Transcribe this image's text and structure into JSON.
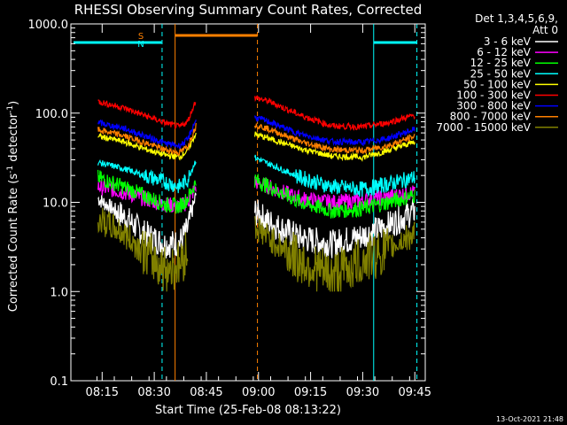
{
  "chart_data": {
    "type": "line",
    "title": "RHESSI Observing Summary Count Rates, Corrected",
    "xlabel": "Start Time (25-Feb-08 08:13:22)",
    "ylabel_main": "Corrected Count Rate (s",
    "ylabel_sup1": "-1",
    "ylabel_mid": " detector",
    "ylabel_sup2": "-1",
    "ylabel_end": ")",
    "y_scale": "log",
    "ylim": [
      0.1,
      1000
    ],
    "xlim_minutes": [
      8.1,
      9.8
    ],
    "x_ticks": [
      "08:15",
      "08:30",
      "08:45",
      "09:00",
      "09:15",
      "09:30",
      "09:45"
    ],
    "y_ticks": [
      "1000.0",
      "100.0",
      "10.0",
      "1.0",
      "0.1"
    ],
    "legend_header": [
      "Det 1,3,4,5,6,9,",
      "Att 0"
    ],
    "footer_date": "13-Oct-2021 21:48",
    "flags": {
      "saa_s": "S",
      "saa_n": "N"
    },
    "series": [
      {
        "name": "3 - 6 keV",
        "color": "#ffffff",
        "values": [
          [
            8.23,
            11
          ],
          [
            8.35,
            7
          ],
          [
            8.45,
            4.5
          ],
          [
            8.55,
            3.4
          ],
          [
            8.62,
            3.5
          ],
          [
            8.66,
            5
          ],
          [
            8.7,
            12
          ],
          [
            8.98,
            8
          ],
          [
            9.05,
            6
          ],
          [
            9.2,
            4
          ],
          [
            9.35,
            3.4
          ],
          [
            9.5,
            4.2
          ],
          [
            9.62,
            5.5
          ],
          [
            9.75,
            8
          ]
        ]
      },
      {
        "name": "6 - 12 keV",
        "color": "#ff00ff",
        "values": [
          [
            8.23,
            15
          ],
          [
            8.35,
            13
          ],
          [
            8.45,
            11
          ],
          [
            8.55,
            9.5
          ],
          [
            8.62,
            9
          ],
          [
            8.66,
            10
          ],
          [
            8.7,
            15
          ],
          [
            8.98,
            17
          ],
          [
            9.05,
            15
          ],
          [
            9.2,
            11
          ],
          [
            9.35,
            10
          ],
          [
            9.5,
            10.5
          ],
          [
            9.62,
            11.5
          ],
          [
            9.75,
            13
          ]
        ]
      },
      {
        "name": "12 - 25 keV",
        "color": "#00ff00",
        "values": [
          [
            8.23,
            19
          ],
          [
            8.35,
            15
          ],
          [
            8.45,
            12
          ],
          [
            8.55,
            9.5
          ],
          [
            8.62,
            9
          ],
          [
            8.66,
            11
          ],
          [
            8.7,
            17
          ],
          [
            8.98,
            18
          ],
          [
            9.05,
            15
          ],
          [
            9.2,
            10
          ],
          [
            9.35,
            8
          ],
          [
            9.5,
            8.5
          ],
          [
            9.62,
            10
          ],
          [
            9.75,
            12
          ]
        ]
      },
      {
        "name": "25 - 50 keV",
        "color": "#00ffff",
        "values": [
          [
            8.23,
            28
          ],
          [
            8.35,
            24
          ],
          [
            8.45,
            20
          ],
          [
            8.55,
            17
          ],
          [
            8.62,
            15
          ],
          [
            8.66,
            18
          ],
          [
            8.7,
            30
          ],
          [
            8.98,
            32
          ],
          [
            9.05,
            27
          ],
          [
            9.2,
            19
          ],
          [
            9.35,
            15
          ],
          [
            9.5,
            14
          ],
          [
            9.62,
            16
          ],
          [
            9.75,
            19
          ]
        ]
      },
      {
        "name": "50 - 100 keV",
        "color": "#ffff00",
        "values": [
          [
            8.23,
            55
          ],
          [
            8.35,
            48
          ],
          [
            8.45,
            40
          ],
          [
            8.55,
            34
          ],
          [
            8.62,
            32
          ],
          [
            8.66,
            38
          ],
          [
            8.7,
            60
          ],
          [
            8.98,
            58
          ],
          [
            9.05,
            52
          ],
          [
            9.2,
            40
          ],
          [
            9.35,
            33
          ],
          [
            9.5,
            32
          ],
          [
            9.62,
            38
          ],
          [
            9.75,
            48
          ]
        ]
      },
      {
        "name": "100 - 300 keV",
        "color": "#ff0000",
        "values": [
          [
            8.23,
            135
          ],
          [
            8.35,
            115
          ],
          [
            8.45,
            95
          ],
          [
            8.55,
            78
          ],
          [
            8.62,
            70
          ],
          [
            8.66,
            80
          ],
          [
            8.7,
            140
          ],
          [
            8.98,
            150
          ],
          [
            9.05,
            135
          ],
          [
            9.2,
            95
          ],
          [
            9.35,
            72
          ],
          [
            9.5,
            70
          ],
          [
            9.62,
            78
          ],
          [
            9.75,
            95
          ]
        ]
      },
      {
        "name": "300 - 800 keV",
        "color": "#0000ff",
        "values": [
          [
            8.23,
            78
          ],
          [
            8.35,
            68
          ],
          [
            8.45,
            56
          ],
          [
            8.55,
            46
          ],
          [
            8.62,
            43
          ],
          [
            8.66,
            50
          ],
          [
            8.7,
            85
          ],
          [
            8.98,
            90
          ],
          [
            9.05,
            80
          ],
          [
            9.2,
            58
          ],
          [
            9.35,
            48
          ],
          [
            9.5,
            47
          ],
          [
            9.62,
            52
          ],
          [
            9.75,
            66
          ]
        ]
      },
      {
        "name": "800 - 7000 keV",
        "color": "#ff8000",
        "values": [
          [
            8.23,
            65
          ],
          [
            8.35,
            56
          ],
          [
            8.45,
            47
          ],
          [
            8.55,
            39
          ],
          [
            8.62,
            36
          ],
          [
            8.66,
            42
          ],
          [
            8.7,
            72
          ],
          [
            8.98,
            75
          ],
          [
            9.05,
            66
          ],
          [
            9.2,
            48
          ],
          [
            9.35,
            39
          ],
          [
            9.5,
            38
          ],
          [
            9.62,
            43
          ],
          [
            9.75,
            55
          ]
        ]
      },
      {
        "name": "7000 - 15000 keV",
        "color": "#808000",
        "values": [
          [
            8.23,
            6.5
          ],
          [
            8.35,
            4.5
          ],
          [
            8.45,
            2.8
          ],
          [
            8.55,
            1.8
          ],
          [
            8.62,
            2
          ],
          [
            8.66,
            3
          ],
          [
            8.98,
            5.5
          ],
          [
            9.05,
            4
          ],
          [
            9.2,
            2.2
          ],
          [
            9.35,
            1.5
          ],
          [
            9.5,
            2.2
          ],
          [
            9.62,
            3
          ],
          [
            9.75,
            4.5
          ]
        ]
      }
    ]
  }
}
